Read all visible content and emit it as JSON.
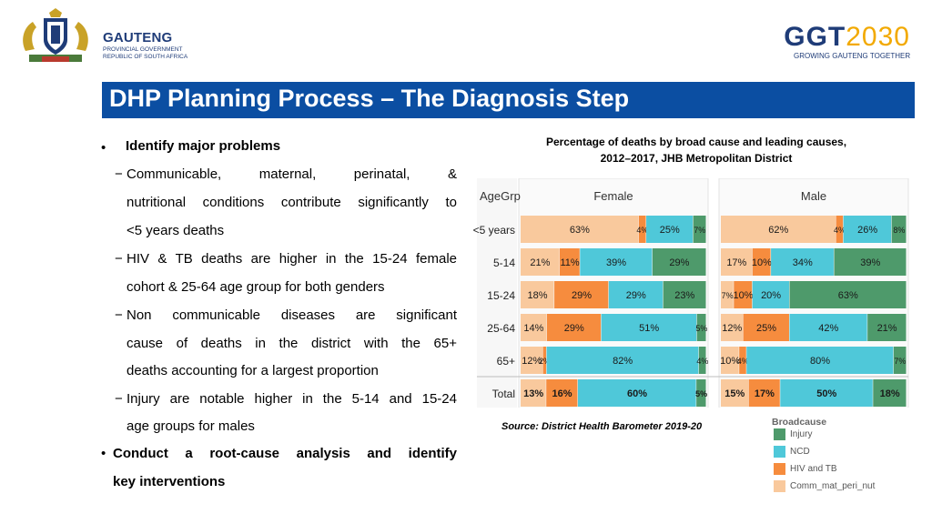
{
  "header": {
    "org_name": "GAUTENG",
    "org_sub1": "PROVINCIAL GOVERNMENT",
    "org_sub2": "REPUBLIC OF SOUTH AFRICA",
    "ggt_part1": "GGT",
    "ggt_part2": "2030",
    "ggt_tagline": "GROWING GAUTENG TOGETHER"
  },
  "slide_title": "DHP Planning Process – The Diagnosis Step",
  "content": {
    "bullet1": "Identify major problems",
    "dash_mark": "−",
    "bullet_mark": "•",
    "lines": [
      "Communicable, maternal, perinatal, &",
      "nutritional conditions contribute significantly to",
      "<5 years  deaths",
      "HIV & TB deaths are higher in the 15-24 female",
      "cohort & 25-64 age group for both genders",
      "Non communicable  diseases are significant",
      "cause of deaths in the district with the 65+",
      "deaths accounting for a  largest proportion",
      "Injury are notable higher in the 5-14 and 15-24",
      "age groups for males"
    ],
    "bullet2_line1": "Conduct a root-cause analysis and identify",
    "bullet2_line2": "key interventions"
  },
  "chart_title_line1": "Percentage of deaths by broad cause and leading causes,",
  "chart_title_line2": "2012–2017, JHB Metropolitan District",
  "source": "Source: District Health Barometer 2019-20",
  "legend": {
    "title": "Broadcause",
    "items": [
      {
        "label": "Injury",
        "color": "#4e9a6b"
      },
      {
        "label": "NCD",
        "color": "#4fc8d9"
      },
      {
        "label": "HIV and TB",
        "color": "#f68c3e"
      },
      {
        "label": "Comm_mat_peri_nut",
        "color": "#f9c99d"
      }
    ]
  },
  "chart_data": {
    "type": "bar",
    "stacked": true,
    "orientation": "horizontal",
    "row_header": "AgeGrp",
    "panels": [
      "Female",
      "Male"
    ],
    "categories": [
      "<5 years",
      "5-14",
      "15-24",
      "25-64",
      "65+",
      "Total"
    ],
    "segment_order": [
      "Comm_mat_peri_nut",
      "HIV and TB",
      "NCD",
      "Injury"
    ],
    "series": {
      "Female": [
        {
          "name": "Comm_mat_peri_nut",
          "values": [
            63,
            21,
            18,
            14,
            12,
            13
          ]
        },
        {
          "name": "HIV and TB",
          "values": [
            4,
            11,
            29,
            29,
            2,
            16
          ]
        },
        {
          "name": "NCD",
          "values": [
            25,
            39,
            29,
            51,
            82,
            60
          ]
        },
        {
          "name": "Injury",
          "values": [
            7,
            29,
            23,
            5,
            4,
            5
          ]
        }
      ],
      "Male": [
        {
          "name": "Comm_mat_peri_nut",
          "values": [
            62,
            17,
            7,
            12,
            10,
            15
          ]
        },
        {
          "name": "HIV and TB",
          "values": [
            4,
            10,
            10,
            25,
            4,
            17
          ]
        },
        {
          "name": "NCD",
          "values": [
            26,
            34,
            20,
            42,
            80,
            50
          ]
        },
        {
          "name": "Injury",
          "values": [
            8,
            39,
            63,
            21,
            7,
            18
          ]
        }
      ]
    },
    "unit": "%"
  }
}
